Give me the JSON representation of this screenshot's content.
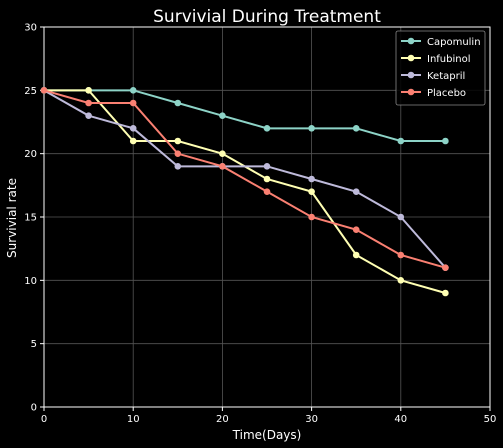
{
  "chart_data": {
    "type": "line",
    "title": "Survivial During Treatment",
    "xlabel": "Time(Days)",
    "ylabel": "Survivial rate",
    "xlim": [
      0,
      50
    ],
    "ylim": [
      0,
      30
    ],
    "xticks": [
      "0",
      "10",
      "20",
      "30",
      "40",
      "50"
    ],
    "yticks": [
      "0",
      "5",
      "10",
      "15",
      "20",
      "25",
      "30"
    ],
    "grid": true,
    "legend_position": "top-right",
    "x": [
      0,
      5,
      10,
      15,
      20,
      25,
      30,
      35,
      40,
      45
    ],
    "series": [
      {
        "name": "Capomulin",
        "color": "#8dd3c7",
        "values": [
          25,
          25,
          25,
          24,
          23,
          22,
          22,
          22,
          21,
          21
        ]
      },
      {
        "name": "Infubinol",
        "color": "#ffffb3",
        "values": [
          25,
          25,
          21,
          21,
          20,
          18,
          17,
          12,
          10,
          9
        ]
      },
      {
        "name": "Ketapril",
        "color": "#bebada",
        "values": [
          25,
          23,
          22,
          19,
          19,
          19,
          18,
          17,
          15,
          11
        ]
      },
      {
        "name": "Placebo",
        "color": "#fa8072",
        "values": [
          25,
          24,
          24,
          20,
          19,
          17,
          15,
          14,
          12,
          11
        ]
      }
    ]
  }
}
